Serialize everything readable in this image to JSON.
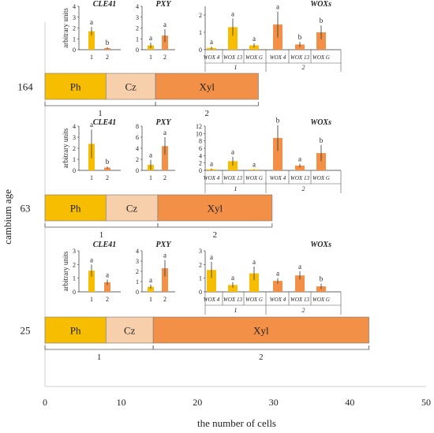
{
  "chart_data": {
    "type": "bar",
    "xlabel": "the number of cells",
    "ylabel": "cambium age",
    "xlim": [
      0,
      50
    ],
    "xticks": [
      0,
      10,
      20,
      30,
      40,
      50
    ],
    "grid": false,
    "colors": {
      "Ph": "#f7bd00",
      "Cz": "#f7cfaa",
      "Xyl": "#f29048",
      "bar_fill_1": "#f7bd00",
      "bar_fill_2": "#f29048",
      "error_bar": "#333333"
    },
    "zone_labels": [
      "Ph",
      "Cz",
      "Xyl"
    ],
    "rows": [
      {
        "age": "164",
        "zones": [
          {
            "name": "Ph",
            "start": 0,
            "end": 8
          },
          {
            "name": "Cz",
            "start": 8,
            "end": 14.5
          },
          {
            "name": "Xyl",
            "start": 14.5,
            "end": 28
          }
        ],
        "brackets": [
          {
            "label": "1",
            "start": 0,
            "end": 14.5
          },
          {
            "label": "2",
            "start": 14.5,
            "end": 28
          }
        ],
        "inset": {
          "ylabel": "arbitrary units",
          "panels": [
            {
              "title": "CLE41",
              "ylim": [
                0,
                4
              ],
              "yticks": [
                0,
                1,
                2,
                3,
                4
              ],
              "categories": [
                "1",
                "2"
              ],
              "values": [
                1.7,
                0.15
              ],
              "errors": [
                0.4,
                0.08
              ],
              "letters": [
                "a",
                "b"
              ]
            },
            {
              "title": "PXY",
              "ylim": [
                0,
                4
              ],
              "yticks": [
                0,
                1,
                2,
                3,
                4
              ],
              "categories": [
                "1",
                "2"
              ],
              "values": [
                0.4,
                1.3
              ],
              "errors": [
                0.25,
                0.6
              ],
              "letters": [
                "a",
                "a"
              ]
            },
            {
              "title": "WOXs",
              "ylim": [
                0,
                2.5
              ],
              "yticks": [
                0,
                1,
                2
              ],
              "categories": [
                "WOX 4",
                "WOX 13",
                "WOX G",
                "WOX 4",
                "WOX 13",
                "WOX G"
              ],
              "groups": [
                "1",
                "2"
              ],
              "values": [
                0.1,
                1.3,
                0.25,
                1.45,
                0.3,
                1.0
              ],
              "errors": [
                0.08,
                0.5,
                0.12,
                0.75,
                0.15,
                0.4
              ],
              "letters": [
                "a",
                "a",
                "a",
                "a",
                "b",
                "b"
              ]
            }
          ]
        }
      },
      {
        "age": "63",
        "zones": [
          {
            "name": "Ph",
            "start": 0,
            "end": 8
          },
          {
            "name": "Cz",
            "start": 8,
            "end": 14.8
          },
          {
            "name": "Xyl",
            "start": 14.8,
            "end": 29.8
          }
        ],
        "brackets": [
          {
            "label": "1",
            "start": 0,
            "end": 14.8
          },
          {
            "label": "2",
            "start": 14.8,
            "end": 29.8
          }
        ],
        "inset": {
          "ylabel": "arbitrary units",
          "panels": [
            {
              "title": "CLE41",
              "ylim": [
                0,
                4
              ],
              "yticks": [
                0,
                1,
                2,
                3,
                4
              ],
              "categories": [
                "1",
                "2"
              ],
              "values": [
                2.4,
                0.25
              ],
              "errors": [
                1.3,
                0.1
              ],
              "letters": [
                "a",
                "b"
              ]
            },
            {
              "title": "PXY",
              "ylim": [
                0,
                8
              ],
              "yticks": [
                0,
                2,
                4,
                6,
                8
              ],
              "categories": [
                "1",
                "2"
              ],
              "values": [
                1.0,
                4.4
              ],
              "errors": [
                0.9,
                1.6
              ],
              "letters": [
                "a",
                "a"
              ]
            },
            {
              "title": "WOXs",
              "ylim": [
                0,
                12
              ],
              "yticks": [
                0,
                2,
                4,
                6,
                8,
                10,
                12
              ],
              "categories": [
                "WOX 4",
                "WOX 13",
                "WOX G",
                "WOX 4",
                "WOX 13",
                "WOX G"
              ],
              "groups": [
                "1",
                "2"
              ],
              "values": [
                0.3,
                2.5,
                0.2,
                8.8,
                1.3,
                4.7
              ],
              "errors": [
                0.2,
                1.2,
                0.1,
                3.5,
                0.5,
                2.2
              ],
              "letters": [
                "a",
                "a",
                "a",
                "b",
                "a",
                "b"
              ]
            }
          ]
        }
      },
      {
        "age": "25",
        "zones": [
          {
            "name": "Ph",
            "start": 0,
            "end": 8
          },
          {
            "name": "Cz",
            "start": 8,
            "end": 14.2
          },
          {
            "name": "Xyl",
            "start": 14.2,
            "end": 42.5
          }
        ],
        "brackets": [
          {
            "label": "1",
            "start": 0,
            "end": 14.2
          },
          {
            "label": "2",
            "start": 14.2,
            "end": 42.5
          }
        ],
        "inset": {
          "ylabel": "arbitrary units",
          "panels": [
            {
              "title": "CLE41",
              "ylim": [
                0,
                3
              ],
              "yticks": [
                0,
                1,
                2,
                3
              ],
              "categories": [
                "1",
                "2"
              ],
              "values": [
                1.55,
                0.7
              ],
              "errors": [
                0.45,
                0.2
              ],
              "letters": [
                "a",
                "a"
              ]
            },
            {
              "title": "PXY",
              "ylim": [
                0,
                4
              ],
              "yticks": [
                0,
                1,
                2,
                3,
                4
              ],
              "categories": [
                "1",
                "2"
              ],
              "values": [
                0.5,
                2.3
              ],
              "errors": [
                0.2,
                0.8
              ],
              "letters": [
                "a",
                "a"
              ]
            },
            {
              "title": "WOXs",
              "ylim": [
                0,
                3
              ],
              "yticks": [
                0,
                1,
                2,
                3
              ],
              "categories": [
                "WOX 4",
                "WOX 13",
                "WOX G",
                "WOX 4",
                "WOX 13",
                "WOX G"
              ],
              "groups": [
                "1",
                "2"
              ],
              "values": [
                1.6,
                0.5,
                1.35,
                0.8,
                1.2,
                0.4
              ],
              "errors": [
                0.6,
                0.2,
                0.5,
                0.2,
                0.3,
                0.2
              ],
              "letters": [
                "a",
                "a",
                "a",
                "a",
                "a",
                "b"
              ]
            }
          ]
        }
      }
    ]
  }
}
